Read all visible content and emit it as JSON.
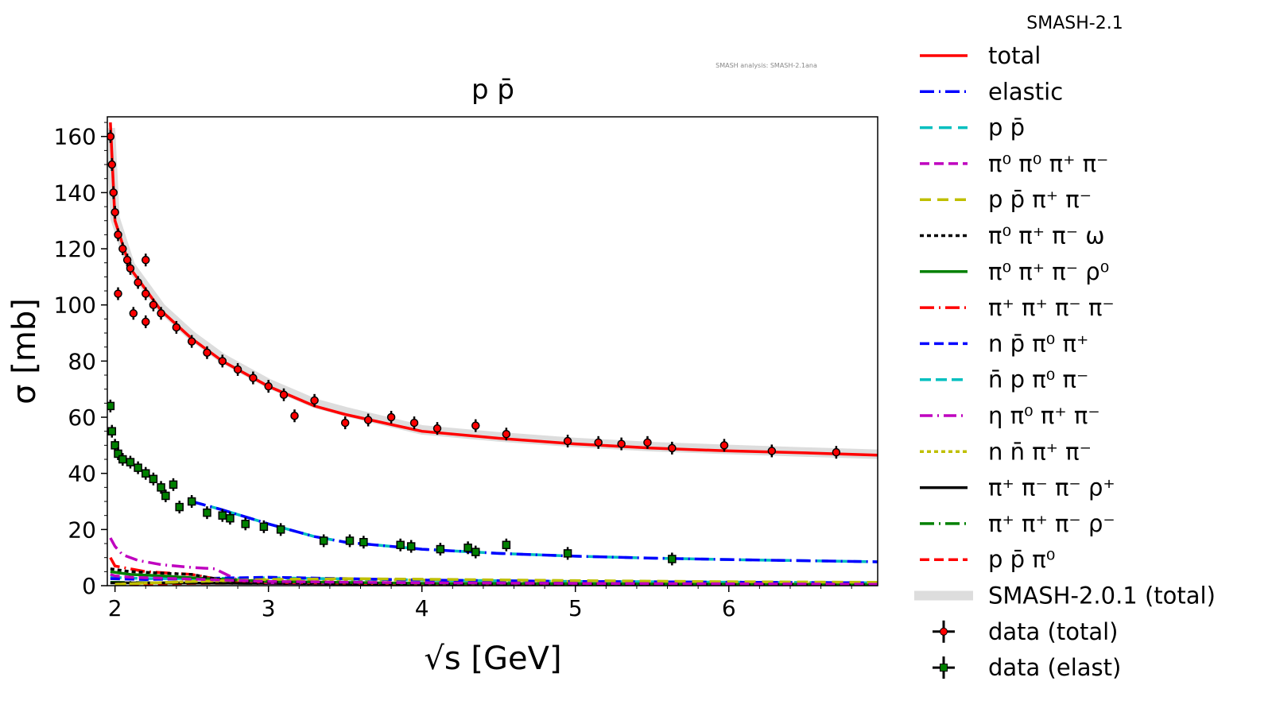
{
  "chart_data": {
    "type": "line",
    "title": "p p̄",
    "watermark": "SMASH analysis: SMASH-2.1ana",
    "xlabel": "√s [GeV]",
    "ylabel": "σ [mb]",
    "xlim": [
      1.95,
      6.97
    ],
    "ylim": [
      0,
      167
    ],
    "xticks": [
      2,
      3,
      4,
      5,
      6
    ],
    "yticks": [
      0,
      20,
      40,
      60,
      80,
      100,
      120,
      140,
      160
    ],
    "legend_title": "SMASH-2.1",
    "legend_placement": "outside-right",
    "series": [
      {
        "name": "total",
        "color": "#ff0000",
        "dash": "",
        "x": [
          1.97,
          2.0,
          2.1,
          2.3,
          2.5,
          2.7,
          3.0,
          3.3,
          3.5,
          4.0,
          4.5,
          5.0,
          5.5,
          6.0,
          6.5,
          6.97
        ],
        "y": [
          165,
          130,
          113,
          98,
          88,
          80,
          71,
          64,
          61,
          55,
          52.5,
          50.5,
          49,
          48,
          47.3,
          46.5
        ]
      },
      {
        "name": "elastic",
        "color": "#0000ff",
        "dash": "18,6,2,6",
        "x": [
          2.5,
          2.7,
          3.0,
          3.3,
          3.5,
          4.0,
          4.5,
          5.0,
          5.5,
          6.0,
          6.97
        ],
        "y": [
          30,
          27,
          22,
          17.5,
          15.5,
          13,
          11.5,
          10.5,
          9.8,
          9.3,
          8.5
        ]
      },
      {
        "name": "p p̄",
        "color": "#00bfbf",
        "dash": "16,8",
        "x": [
          2.5,
          2.7,
          3.0,
          3.3,
          3.5,
          4.0,
          4.5,
          5.0,
          5.5,
          6.0,
          6.97
        ],
        "y": [
          30,
          27,
          22,
          17.5,
          15.5,
          13,
          11.5,
          10.5,
          9.8,
          9.3,
          8.5
        ]
      },
      {
        "name": "π⁰ π⁰ π⁺ π⁻",
        "color": "#bf00bf",
        "dash": "12,6",
        "x": [
          1.97,
          2.0,
          2.1,
          2.4,
          2.7,
          3.0,
          4.0,
          5.0,
          6.97
        ],
        "y": [
          4,
          3.5,
          3,
          2.5,
          2,
          1.5,
          1,
          0.8,
          0.5
        ]
      },
      {
        "name": "p p̄ π⁺ π⁻",
        "color": "#bfbf00",
        "dash": "14,8",
        "x": [
          2.0,
          2.5,
          3.0,
          3.5,
          4.0,
          5.0,
          6.0,
          6.97
        ],
        "y": [
          0.5,
          1.5,
          2.2,
          2.5,
          2.3,
          1.8,
          1.4,
          1.2
        ]
      },
      {
        "name": "π⁰ π⁺ π⁻ ω",
        "color": "#000000",
        "dash": "5,4",
        "x": [
          1.97,
          2.1,
          2.3,
          2.5,
          2.7,
          3.0,
          4.0,
          6.97
        ],
        "y": [
          6,
          5,
          4.5,
          4,
          2,
          1.2,
          0.6,
          0.3
        ]
      },
      {
        "name": "π⁰ π⁺ π⁻ ρ⁰",
        "color": "#008000",
        "dash": "",
        "x": [
          1.97,
          2.1,
          2.3,
          2.6,
          3.0,
          4.0,
          6.97
        ],
        "y": [
          5,
          4,
          3.5,
          2.5,
          1.5,
          0.8,
          0.4
        ]
      },
      {
        "name": "π⁺ π⁺ π⁻ π⁻",
        "color": "#ff0000",
        "dash": "18,6,2,6",
        "x": [
          1.97,
          2.0,
          2.2,
          2.5,
          2.7,
          3.0,
          4.0,
          6.97
        ],
        "y": [
          10,
          7,
          5,
          4,
          2,
          1.2,
          0.6,
          0.3
        ]
      },
      {
        "name": "n p̄ π⁰ π⁺",
        "color": "#0000ff",
        "dash": "12,6",
        "x": [
          1.97,
          2.2,
          2.5,
          3.0,
          4.0,
          5.0,
          6.97
        ],
        "y": [
          2.5,
          2.2,
          2.5,
          3,
          2,
          1.5,
          1
        ]
      },
      {
        "name": "n̄ p π⁰ π⁻",
        "color": "#00bfbf",
        "dash": "14,6",
        "x": [
          1.97,
          2.2,
          2.5,
          3.0,
          4.0,
          5.0,
          6.97
        ],
        "y": [
          3,
          2.5,
          2.5,
          2.8,
          2,
          1.5,
          1
        ]
      },
      {
        "name": "η π⁰ π⁺ π⁻",
        "color": "#bf00bf",
        "dash": "16,6,2,6",
        "x": [
          1.97,
          2.0,
          2.05,
          2.15,
          2.3,
          2.5,
          2.65,
          2.8,
          3.0,
          6.97
        ],
        "y": [
          17,
          14,
          11,
          9,
          7.5,
          6.5,
          6,
          2,
          1,
          0.3
        ]
      },
      {
        "name": "n n̄ π⁺ π⁻",
        "color": "#bfbf00",
        "dash": "5,4",
        "x": [
          2.0,
          2.5,
          3.0,
          4.0,
          5.0,
          6.97
        ],
        "y": [
          0.5,
          1.5,
          2,
          2,
          1.5,
          1
        ]
      },
      {
        "name": "π⁺ π⁻ π⁻ ρ⁺",
        "color": "#000000",
        "dash": "",
        "x": [
          1.97,
          2.3,
          3.0,
          4.0,
          6.97
        ],
        "y": [
          1,
          1,
          0.8,
          0.5,
          0.3
        ]
      },
      {
        "name": "π⁺ π⁺ π⁻ ρ⁻",
        "color": "#008000",
        "dash": "18,6,2,6",
        "x": [
          1.97,
          2.3,
          3.0,
          4.0,
          6.97
        ],
        "y": [
          1.2,
          1,
          0.8,
          0.5,
          0.3
        ]
      },
      {
        "name": "p p̄ π⁰",
        "color": "#ff0000",
        "dash": "12,6",
        "x": [
          2.0,
          2.5,
          3.0,
          4.0,
          6.97
        ],
        "y": [
          0.3,
          0.8,
          1,
          0.8,
          0.5
        ]
      }
    ],
    "reference": {
      "name": "SMASH-2.0.1 (total)",
      "color": "#dddddd",
      "x": [
        1.97,
        2.0,
        2.1,
        2.3,
        2.5,
        2.7,
        3.0,
        3.3,
        3.5,
        4.0,
        4.5,
        5.0,
        5.5,
        6.0,
        6.5,
        6.97
      ],
      "y": [
        163,
        131,
        114,
        99,
        89,
        81,
        72,
        65,
        62,
        55.5,
        53,
        51,
        49.5,
        48.5,
        47.6,
        46.8
      ]
    },
    "data_total": {
      "name": "data (total)",
      "x": [
        1.97,
        1.98,
        1.99,
        2.0,
        2.02,
        2.05,
        2.08,
        2.1,
        2.15,
        2.2,
        2.25,
        2.3,
        2.4,
        2.5,
        2.6,
        2.7,
        2.8,
        2.9,
        3.0,
        3.1,
        3.3,
        3.5,
        3.65,
        3.8,
        3.95,
        4.1,
        4.35,
        4.55,
        4.95,
        5.15,
        5.3,
        5.47,
        5.63,
        5.97,
        6.28,
        6.7,
        2.02,
        2.12,
        2.2,
        2.2,
        3.17
      ],
      "y": [
        160,
        150,
        140,
        133,
        125,
        120,
        116,
        113,
        108,
        104,
        100,
        97,
        92,
        87,
        83,
        80,
        77,
        74,
        71,
        68,
        66,
        58,
        59,
        60,
        58,
        56,
        57,
        54,
        51.5,
        51,
        50.5,
        51,
        49,
        50,
        48,
        47.5,
        104,
        97,
        94,
        116,
        60.5
      ]
    },
    "data_elast": {
      "name": "data (elast)",
      "x": [
        1.97,
        1.98,
        2.0,
        2.02,
        2.05,
        2.1,
        2.15,
        2.2,
        2.25,
        2.3,
        2.33,
        2.38,
        2.42,
        2.5,
        2.6,
        2.7,
        2.75,
        2.85,
        2.97,
        3.08,
        3.36,
        3.53,
        3.62,
        3.86,
        3.93,
        4.12,
        4.3,
        4.35,
        4.55,
        4.95,
        5.63
      ],
      "y": [
        64,
        55,
        50,
        47,
        45,
        44,
        42,
        40,
        38,
        35,
        32,
        36,
        28,
        30,
        26,
        25,
        24,
        22,
        21,
        20,
        16,
        16,
        15.5,
        14.5,
        14,
        13,
        13.5,
        12,
        14.5,
        11.5,
        9.5
      ]
    }
  }
}
